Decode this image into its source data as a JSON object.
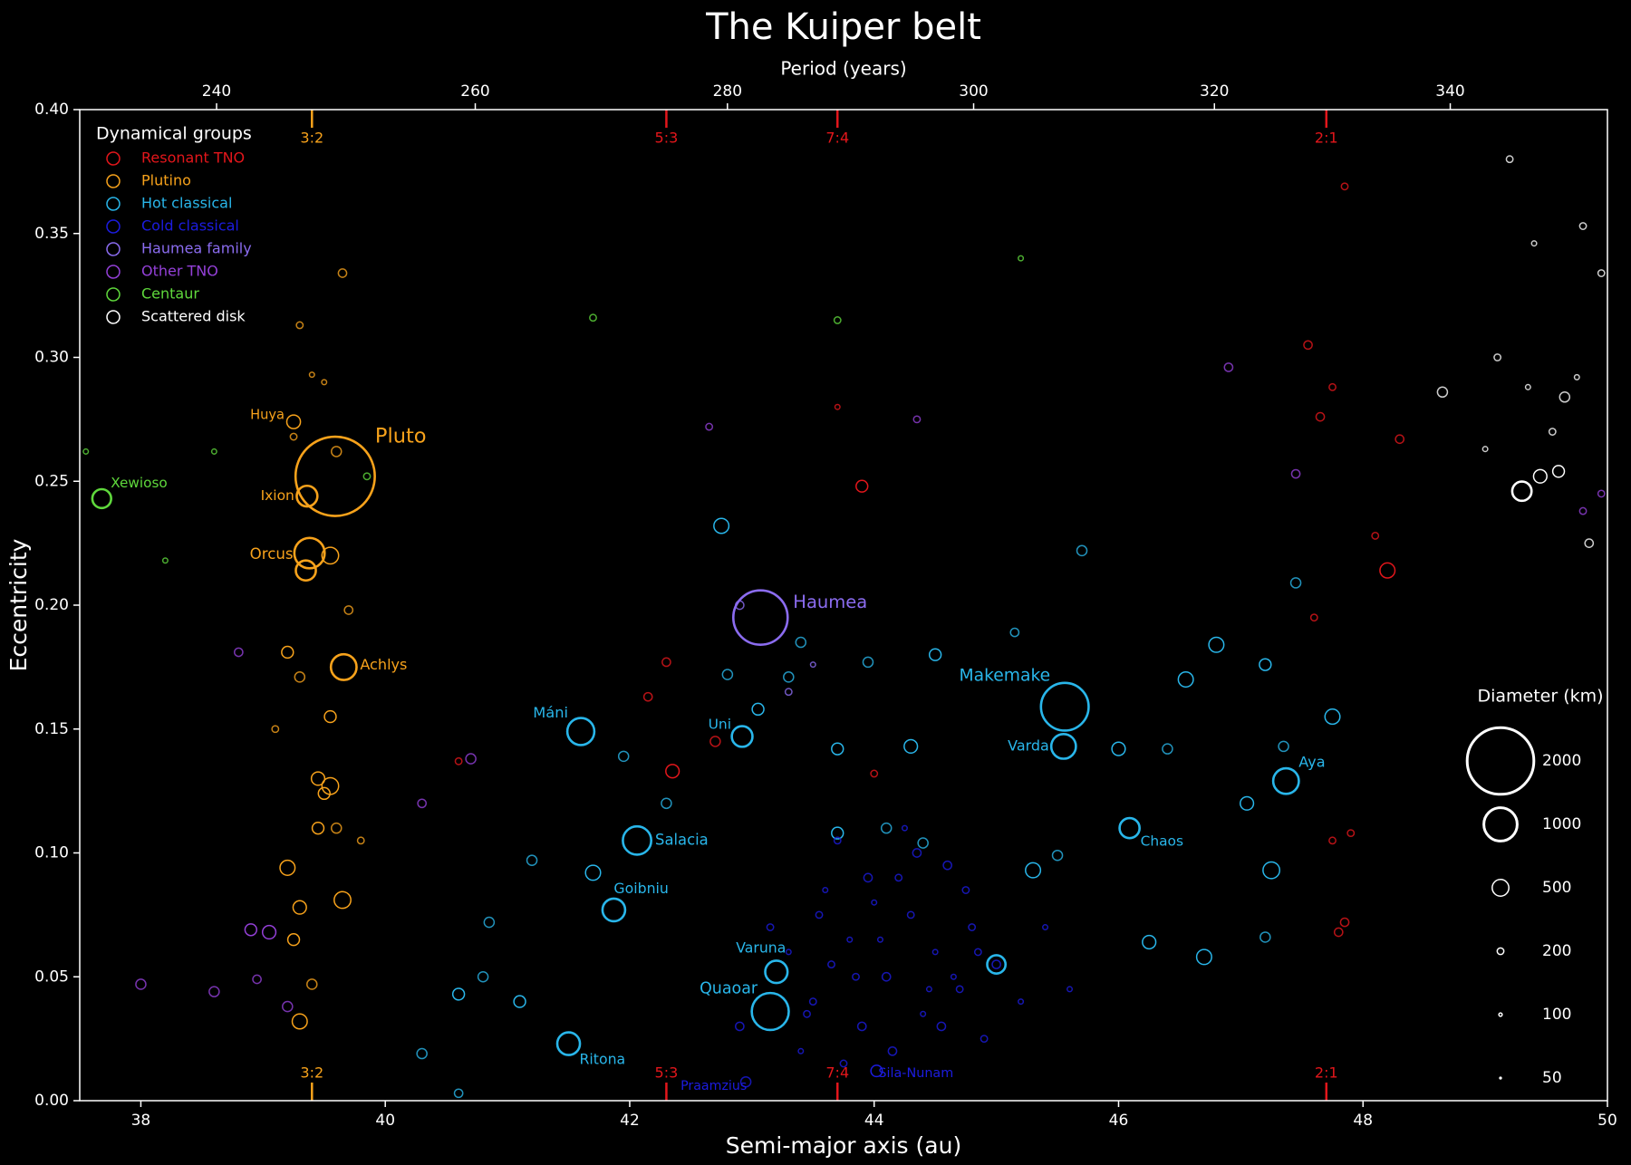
{
  "chart_data": {
    "type": "scatter",
    "title": "The Kuiper belt",
    "xlabel": "Semi-major axis (au)",
    "ylabel": "Eccentricity",
    "x2label": "Period (years)",
    "xlim": [
      37.5,
      50
    ],
    "xticks": [
      38,
      40,
      42,
      44,
      46,
      48,
      50
    ],
    "x2ticks": [
      240,
      260,
      280,
      300,
      320,
      340
    ],
    "ylim": [
      0,
      0.4
    ],
    "yticks": [
      {
        "value": 0,
        "label": "0.00"
      },
      {
        "value": 0.05,
        "label": "0.05"
      },
      {
        "value": 0.1,
        "label": "0.10"
      },
      {
        "value": 0.15,
        "label": "0.15"
      },
      {
        "value": 0.2,
        "label": "0.20"
      },
      {
        "value": 0.25,
        "label": "0.25"
      },
      {
        "value": 0.3,
        "label": "0.30"
      },
      {
        "value": 0.35,
        "label": "0.35"
      },
      {
        "value": 0.4,
        "label": "0.40"
      }
    ],
    "legend_title": "Dynamical groups",
    "legend": "upper left",
    "resonances": [
      {
        "label": "3:2",
        "value": 39.4,
        "color": "#f7a21b"
      },
      {
        "label": "5:3",
        "value": 42.3,
        "color": "#e3161b"
      },
      {
        "label": "7:4",
        "value": 43.7,
        "color": "#e3161b"
      },
      {
        "label": "2:1",
        "value": 47.7,
        "color": "#e3161b"
      }
    ],
    "size_legend": {
      "title": "Diameter (km)",
      "values": [
        2000,
        1000,
        500,
        200,
        100,
        50
      ]
    },
    "series": [
      {
        "name": "Resonant TNO",
        "color": "#e3161b",
        "x": [
          47.85,
          48.1,
          48.2,
          47.55,
          47.65,
          47.75,
          47.6,
          43.9,
          42.3,
          42.15,
          42.7,
          42.35,
          40.6,
          44.0,
          47.85,
          47.8,
          48.3,
          47.9,
          47.75,
          43.7
        ],
        "y": [
          0.369,
          0.228,
          0.214,
          0.305,
          0.276,
          0.288,
          0.195,
          0.248,
          0.177,
          0.163,
          0.145,
          0.133,
          0.137,
          0.132,
          0.072,
          0.068,
          0.267,
          0.108,
          0.105,
          0.28
        ],
        "size": [
          200,
          200,
          450,
          250,
          250,
          200,
          200,
          350,
          250,
          250,
          300,
          400,
          200,
          200,
          250,
          250,
          250,
          200,
          200,
          150
        ]
      },
      {
        "name": "Plutino",
        "color": "#f7a21b",
        "x": [
          39.59,
          39.25,
          39.36,
          39.38,
          39.66,
          39.3,
          39.65,
          39.4,
          39.5,
          39.6,
          39.25,
          39.55,
          39.7,
          39.2,
          39.55,
          39.45,
          39.5,
          39.55,
          39.45,
          39.2,
          39.3,
          39.65,
          39.25,
          39.4,
          39.3,
          39.6,
          39.3,
          39.8,
          39.1,
          39.35
        ],
        "y": [
          0.252,
          0.274,
          0.244,
          0.221,
          0.175,
          0.313,
          0.334,
          0.293,
          0.29,
          0.262,
          0.268,
          0.22,
          0.198,
          0.181,
          0.155,
          0.13,
          0.124,
          0.127,
          0.11,
          0.094,
          0.078,
          0.081,
          0.065,
          0.047,
          0.032,
          0.11,
          0.171,
          0.105,
          0.15,
          0.214
        ],
        "size": [
          2377,
          410,
          620,
          910,
          770,
          200,
          250,
          150,
          150,
          300,
          200,
          500,
          250,
          350,
          350,
          400,
          350,
          500,
          350,
          450,
          400,
          500,
          350,
          300,
          450,
          300,
          300,
          200,
          200,
          600
        ],
        "labels": [
          "Pluto",
          "Huya",
          "Ixion",
          "Orcus",
          "Achlys",
          null,
          null,
          null,
          null,
          null,
          null,
          null,
          null,
          null,
          null,
          null,
          null,
          null,
          null,
          null,
          null,
          null,
          null,
          null,
          null,
          null,
          null,
          null,
          null,
          null
        ]
      },
      {
        "name": "Hot classical",
        "color": "#29b6ea",
        "x": [
          45.56,
          41.6,
          42.92,
          45.55,
          47.37,
          42.06,
          46.09,
          41.87,
          43.2,
          43.15,
          41.5,
          42.75,
          43.4,
          44.5,
          43.95,
          43.3,
          42.8,
          43.05,
          43.7,
          44.3,
          45.15,
          45.7,
          46.0,
          46.55,
          46.8,
          47.2,
          47.45,
          47.75,
          47.35,
          47.05,
          46.4,
          46.25,
          46.7,
          47.25,
          47.2,
          45.0,
          45.3,
          45.5,
          44.4,
          43.7,
          42.3,
          41.2,
          40.8,
          40.6,
          41.1,
          40.85,
          40.3,
          40.6,
          41.95,
          41.7,
          44.1
        ],
        "y": [
          0.159,
          0.149,
          0.147,
          0.143,
          0.129,
          0.105,
          0.11,
          0.077,
          0.052,
          0.036,
          0.023,
          0.232,
          0.185,
          0.18,
          0.177,
          0.171,
          0.172,
          0.158,
          0.142,
          0.143,
          0.189,
          0.222,
          0.142,
          0.17,
          0.184,
          0.176,
          0.209,
          0.155,
          0.143,
          0.12,
          0.142,
          0.064,
          0.058,
          0.093,
          0.066,
          0.055,
          0.093,
          0.099,
          0.104,
          0.108,
          0.12,
          0.097,
          0.05,
          0.043,
          0.04,
          0.072,
          0.019,
          0.003,
          0.139,
          0.092,
          0.11
        ],
        "size": [
          1430,
          810,
          620,
          740,
          770,
          850,
          600,
          680,
          670,
          1110,
          680,
          450,
          300,
          350,
          300,
          300,
          300,
          350,
          350,
          400,
          250,
          300,
          400,
          450,
          450,
          350,
          300,
          450,
          300,
          400,
          300,
          400,
          450,
          500,
          300,
          550,
          450,
          300,
          300,
          350,
          300,
          300,
          300,
          350,
          350,
          300,
          300,
          250,
          300,
          450,
          300
        ],
        "labels": [
          "Makemake",
          "Máni",
          "Uni",
          "Varda",
          "Aya",
          "Salacia",
          "Chaos",
          "Goibniu",
          "Varuna",
          "Quaoar",
          "Ritona",
          null,
          null,
          null,
          null,
          null,
          null,
          null,
          null,
          null,
          null,
          null,
          null,
          null,
          null,
          null,
          null,
          null,
          null,
          null,
          null,
          null,
          null,
          null,
          null,
          null,
          null,
          null,
          null,
          null,
          null,
          null,
          null,
          null,
          null,
          null,
          null,
          null,
          null,
          null,
          null
        ]
      },
      {
        "name": "Cold classical",
        "color": "#1c1ce0",
        "x": [
          42.95,
          44.02,
          43.5,
          43.8,
          44.1,
          44.3,
          44.5,
          44.7,
          43.6,
          43.9,
          44.2,
          44.4,
          44.8,
          45.0,
          43.4,
          43.7,
          44.0,
          44.6,
          44.9,
          43.3,
          43.55,
          44.15,
          44.45,
          43.85,
          44.35,
          44.75,
          45.2,
          43.45,
          44.05,
          44.55,
          43.65,
          44.25,
          44.85,
          43.95,
          45.4,
          43.75,
          44.65,
          42.9,
          43.15,
          45.6
        ],
        "y": [
          0.0076,
          0.012,
          0.04,
          0.065,
          0.05,
          0.075,
          0.06,
          0.045,
          0.085,
          0.03,
          0.09,
          0.035,
          0.07,
          0.055,
          0.02,
          0.105,
          0.08,
          0.095,
          0.025,
          0.06,
          0.075,
          0.02,
          0.045,
          0.05,
          0.1,
          0.085,
          0.04,
          0.035,
          0.065,
          0.03,
          0.055,
          0.11,
          0.06,
          0.09,
          0.07,
          0.015,
          0.05,
          0.03,
          0.07,
          0.045
        ],
        "size": [
          300,
          340,
          200,
          150,
          250,
          200,
          150,
          200,
          150,
          250,
          200,
          150,
          200,
          250,
          150,
          200,
          150,
          250,
          200,
          150,
          200,
          250,
          150,
          200,
          250,
          200,
          150,
          200,
          150,
          250,
          200,
          150,
          200,
          250,
          150,
          200,
          150,
          250,
          200,
          150
        ],
        "labels": [
          "Praamzius",
          "Sila-Nunam",
          null,
          null,
          null,
          null,
          null,
          null,
          null,
          null,
          null,
          null,
          null,
          null,
          null,
          null,
          null,
          null,
          null,
          null,
          null,
          null,
          null,
          null,
          null,
          null,
          null,
          null,
          null,
          null,
          null,
          null,
          null,
          null,
          null,
          null,
          null,
          null,
          null,
          null
        ]
      },
      {
        "name": "Haumea family",
        "color": "#8b6cf0",
        "x": [
          43.07,
          43.3,
          42.9,
          43.5
        ],
        "y": [
          0.195,
          0.165,
          0.2,
          0.176
        ],
        "size": [
          1630,
          200,
          250,
          150
        ],
        "labels": [
          "Haumea",
          null,
          null,
          null
        ]
      },
      {
        "name": "Other TNO",
        "color": "#9440d8",
        "x": [
          38.0,
          38.6,
          38.9,
          39.05,
          38.95,
          39.2,
          38.8,
          40.7,
          40.3,
          46.9,
          47.45,
          42.65,
          44.35,
          49.8,
          49.95
        ],
        "y": [
          0.047,
          0.044,
          0.069,
          0.068,
          0.049,
          0.038,
          0.181,
          0.138,
          0.12,
          0.296,
          0.253,
          0.272,
          0.275,
          0.238,
          0.245
        ],
        "size": [
          300,
          300,
          350,
          400,
          250,
          300,
          250,
          300,
          250,
          250,
          250,
          200,
          200,
          200,
          200
        ]
      },
      {
        "name": "Centaur",
        "color": "#5fd83c",
        "x": [
          37.68,
          37.55,
          38.2,
          41.7,
          43.7,
          39.85,
          45.2,
          38.6
        ],
        "y": [
          0.243,
          0.262,
          0.218,
          0.316,
          0.315,
          0.252,
          0.34,
          0.262
        ],
        "size": [
          565,
          150,
          150,
          200,
          200,
          200,
          150,
          150
        ],
        "labels": [
          "Xewioso",
          null,
          null,
          null,
          null,
          null,
          null,
          null
        ]
      },
      {
        "name": "Scattered disk",
        "color": "#ffffff",
        "x": [
          49.3,
          49.45,
          49.6,
          49.65,
          48.65,
          49.55,
          49.85,
          49.1,
          49.2,
          49.8,
          49.95,
          49.35,
          49.4,
          49.0,
          49.75
        ],
        "y": [
          0.246,
          0.252,
          0.254,
          0.284,
          0.286,
          0.27,
          0.225,
          0.3,
          0.38,
          0.353,
          0.334,
          0.288,
          0.346,
          0.263,
          0.292
        ],
        "size": [
          580,
          400,
          350,
          300,
          300,
          200,
          250,
          200,
          200,
          200,
          200,
          150,
          150,
          150,
          150
        ]
      }
    ]
  }
}
